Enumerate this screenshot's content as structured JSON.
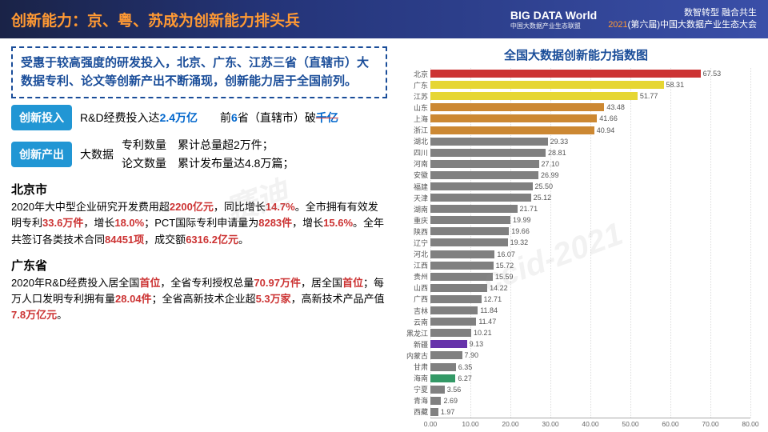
{
  "header": {
    "title": "创新能力：京、粤、苏成为创新能力排头兵",
    "logo_main": "BIG DATA World",
    "logo_sub": "中国大数据产业生态联盟",
    "slogan1": "数智转型 融合共生",
    "slogan2_year": "2021",
    "slogan2_rest": "(第六届)中国大数据产业生态大会"
  },
  "summary": "受惠于较高强度的研发投入，北京、广东、江苏三省（直辖市）大数据专利、论文等创新产出不断涌现，创新能力居于全国前列。",
  "row1": {
    "tag": "创新投入",
    "t1": "R&D经费投入达",
    "v1": "2.4万亿",
    "gap": "　　",
    "t2": "前",
    "v2": "6",
    "t3": "省（直辖市）破",
    "v3": "千亿"
  },
  "row2": {
    "tag": "创新产出",
    "label": "大数据",
    "l1": "专利数量",
    "r1": "累计总量超2万件；",
    "l2": "论文数量",
    "r2": "累计发布量达4.8万篇；"
  },
  "bj": {
    "name": "北京市",
    "p1a": "2020年大中型企业研究开发费用超",
    "p1v1": "2200亿元",
    "p1b": "，同比增长",
    "p1v2": "14.7%",
    "p1c": "。",
    "p2a": "全市拥有有效发明专利",
    "p2v1": "33.6万件",
    "p2b": "，增长",
    "p2v2": "18.0%",
    "p2c": "；PCT国际专利申请量为",
    "p2v3": "8283件",
    "p2d": "，增长",
    "p2v4": "15.6%",
    "p2e": "。全年共签订各类技术合同",
    "p2v5": "84451项",
    "p2f": "，成交额",
    "p2v6": "6316.2亿元",
    "p2g": "。"
  },
  "gd": {
    "name": "广东省",
    "p1a": "2020年R&D经费投入居全国",
    "p1v1": "首位",
    "p1b": "，全省专利授权总量",
    "p1v2": "70.97万件",
    "p1c": "，居全国",
    "p1v3": "首位",
    "p1d": "；每万人口发明专利拥有量",
    "p1v4": "28.04件",
    "p1e": "；全省高新技术企业超",
    "p1v5": "5.3万家",
    "p1f": "，高新技术产品产值",
    "p1v6": "7.8万亿元",
    "p1g": "。"
  },
  "chart": {
    "title": "全国大数据创新能力指数图",
    "xmax": 80,
    "xticks": [
      0,
      10,
      20,
      30,
      40,
      50,
      60,
      70,
      80
    ],
    "xtick_labels": [
      "0.00",
      "10.00",
      "20.00",
      "30.00",
      "40.00",
      "50.00",
      "60.00",
      "70.00",
      "80.00"
    ],
    "bars": [
      {
        "label": "北京",
        "value": 67.53,
        "color": "#cc3333"
      },
      {
        "label": "广东",
        "value": 58.31,
        "color": "#e6d633"
      },
      {
        "label": "江苏",
        "value": 51.77,
        "color": "#e6d633"
      },
      {
        "label": "山东",
        "value": 43.48,
        "color": "#cc8833"
      },
      {
        "label": "上海",
        "value": 41.66,
        "color": "#cc8833"
      },
      {
        "label": "浙江",
        "value": 40.94,
        "color": "#cc8833"
      },
      {
        "label": "湖北",
        "value": 29.33,
        "color": "#808080"
      },
      {
        "label": "四川",
        "value": 28.81,
        "color": "#808080"
      },
      {
        "label": "河南",
        "value": 27.1,
        "color": "#808080"
      },
      {
        "label": "安徽",
        "value": 26.99,
        "color": "#808080"
      },
      {
        "label": "福建",
        "value": 25.5,
        "color": "#808080"
      },
      {
        "label": "天津",
        "value": 25.12,
        "color": "#808080"
      },
      {
        "label": "湖南",
        "value": 21.71,
        "color": "#808080"
      },
      {
        "label": "重庆",
        "value": 19.99,
        "color": "#808080"
      },
      {
        "label": "陕西",
        "value": 19.66,
        "color": "#808080"
      },
      {
        "label": "辽宁",
        "value": 19.32,
        "color": "#808080"
      },
      {
        "label": "河北",
        "value": 16.07,
        "color": "#808080"
      },
      {
        "label": "江西",
        "value": 15.72,
        "color": "#808080"
      },
      {
        "label": "贵州",
        "value": 15.59,
        "color": "#808080"
      },
      {
        "label": "山西",
        "value": 14.22,
        "color": "#808080"
      },
      {
        "label": "广西",
        "value": 12.71,
        "color": "#808080"
      },
      {
        "label": "吉林",
        "value": 11.84,
        "color": "#808080"
      },
      {
        "label": "云南",
        "value": 11.47,
        "color": "#808080"
      },
      {
        "label": "黑龙江",
        "value": 10.21,
        "color": "#808080"
      },
      {
        "label": "新疆",
        "value": 9.13,
        "color": "#6633aa"
      },
      {
        "label": "内蒙古",
        "value": 7.9,
        "color": "#808080"
      },
      {
        "label": "甘肃",
        "value": 6.35,
        "color": "#808080"
      },
      {
        "label": "海南",
        "value": 6.27,
        "color": "#339966"
      },
      {
        "label": "宁夏",
        "value": 3.56,
        "color": "#808080"
      },
      {
        "label": "青海",
        "value": 2.69,
        "color": "#808080"
      },
      {
        "label": "西藏",
        "value": 1.97,
        "color": "#808080"
      }
    ]
  },
  "watermarks": [
    "赛迪",
    "ccid-2021"
  ]
}
